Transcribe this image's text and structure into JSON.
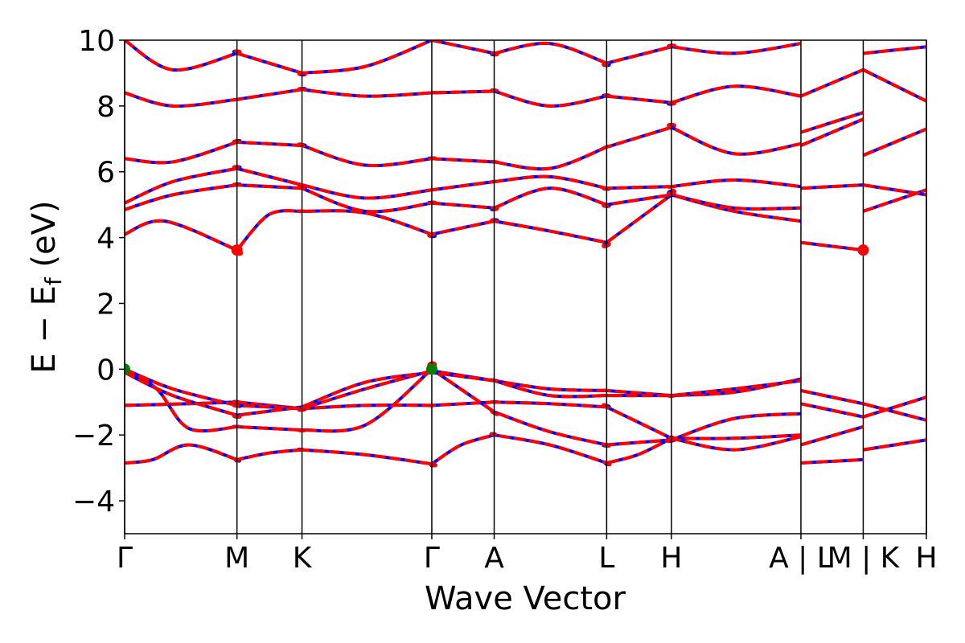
{
  "chart_data": {
    "type": "line",
    "xlabel": "Wave Vector",
    "ylabel": "E − E",
    "ylabel_sub": "f",
    "ylabel_unit": " (eV)",
    "ylim": [
      -5,
      10
    ],
    "yticks": [
      -4,
      -2,
      0,
      2,
      4,
      6,
      8,
      10
    ],
    "ytick_labels": [
      "−4",
      "−2",
      "0",
      "2",
      "4",
      "6",
      "8",
      "10"
    ],
    "xlim": [
      0,
      1
    ],
    "kpoints": [
      {
        "label": "Γ",
        "x": 0.0
      },
      {
        "label": "M",
        "x": 0.1401
      },
      {
        "label": "K",
        "x": 0.2212
      },
      {
        "label": "Γ",
        "x": 0.3831
      },
      {
        "label": "A",
        "x": 0.4609
      },
      {
        "label": "L",
        "x": 0.6012
      },
      {
        "label": "H",
        "x": 0.682
      },
      {
        "label": "A | L",
        "x": 0.8435
      },
      {
        "label": "M | K",
        "x": 0.9212
      },
      {
        "label": "H",
        "x": 1.0
      }
    ],
    "grid": false,
    "legend": "none",
    "colors": {
      "band_solid": "#0000ff",
      "band_dashed": "#ff0000",
      "cbm": "#ff0000",
      "vbm": "#008000"
    },
    "markers": [
      {
        "type": "cbm",
        "x": 0.1401,
        "y": 3.62
      },
      {
        "type": "cbm",
        "x": 0.9212,
        "y": 3.62
      },
      {
        "type": "vbm",
        "x": 0.0,
        "y": 0.0
      },
      {
        "type": "vbm",
        "x": 0.3831,
        "y": 0.0
      }
    ],
    "series": [
      {
        "x": [
          0,
          0.035,
          0.08,
          0.1401,
          0.1401,
          0.18,
          0.2212,
          0.2212,
          0.3,
          0.3831,
          0.3831,
          0.42,
          0.4609,
          0.4609,
          0.53,
          0.6012,
          0.6012,
          0.64,
          0.682,
          0.682,
          0.76,
          0.8435
        ],
        "y": [
          -2.85,
          -2.75,
          -2.3,
          -2.75,
          -2.75,
          -2.55,
          -2.45,
          -2.45,
          -2.6,
          -2.88,
          -2.88,
          -2.3,
          -2.0,
          -2.0,
          -2.3,
          -2.85,
          -2.85,
          -2.6,
          -2.1,
          -2.1,
          -2.1,
          -2.0
        ]
      },
      {
        "x": [
          0,
          0.08,
          0.1401,
          0.1401,
          0.2212,
          0.2212,
          0.3,
          0.3831,
          0.3831,
          0.4609,
          0.4609,
          0.53,
          0.6012,
          0.6012,
          0.682,
          0.682,
          0.76,
          0.8435
        ],
        "y": [
          -1.1,
          -1.05,
          -1.0,
          -1.0,
          -1.2,
          -1.2,
          -1.1,
          -1.1,
          -1.1,
          -1.0,
          -1.0,
          -1.05,
          -1.15,
          -1.15,
          -2.1,
          -2.1,
          -2.45,
          -2.05
        ]
      },
      {
        "x": [
          0,
          0.04,
          0.08,
          0.1401,
          0.1401,
          0.2212,
          0.2212,
          0.3,
          0.3831,
          0.3831,
          0.4609,
          0.4609,
          0.53,
          0.6012,
          0.6012,
          0.682,
          0.682,
          0.76,
          0.8435
        ],
        "y": [
          -0.05,
          -0.6,
          -1.8,
          -1.75,
          -1.75,
          -1.85,
          -1.85,
          -1.7,
          0.0,
          0.0,
          -1.3,
          -1.3,
          -1.9,
          -2.3,
          -2.3,
          -2.15,
          -2.15,
          -1.5,
          -1.35
        ]
      },
      {
        "x": [
          0,
          0.06,
          0.1401,
          0.1401,
          0.2212,
          0.2212,
          0.3,
          0.3831,
          0.3831,
          0.4609,
          0.4609,
          0.53,
          0.6012,
          0.6012,
          0.682,
          0.682,
          0.76,
          0.8435
        ],
        "y": [
          0.0,
          -0.6,
          -1.1,
          -1.1,
          -1.2,
          -1.2,
          -0.6,
          -0.05,
          -0.05,
          -0.35,
          -0.35,
          -0.6,
          -0.65,
          -0.65,
          -0.8,
          -0.8,
          -0.7,
          -0.3
        ]
      },
      {
        "x": [
          0,
          0.06,
          0.1401,
          0.1401,
          0.2212,
          0.2212,
          0.3,
          0.3831,
          0.3831,
          0.4609,
          0.4609,
          0.53,
          0.6012,
          0.6012,
          0.682,
          0.682,
          0.76,
          0.8435
        ],
        "y": [
          -0.1,
          -0.8,
          -1.4,
          -1.4,
          -1.15,
          -1.15,
          -0.4,
          -0.1,
          -0.1,
          -0.35,
          -0.35,
          -0.8,
          -0.8,
          -0.8,
          -0.8,
          -0.8,
          -0.6,
          -0.35
        ]
      },
      {
        "x": [
          0,
          0.05,
          0.1401,
          0.1401,
          0.18,
          0.2212,
          0.2212,
          0.3,
          0.3831,
          0.3831,
          0.4609,
          0.4609,
          0.53,
          0.6012,
          0.6012,
          0.682,
          0.682,
          0.76,
          0.8435
        ],
        "y": [
          4.1,
          4.5,
          3.62,
          3.62,
          4.7,
          4.8,
          4.8,
          4.75,
          4.1,
          4.1,
          4.5,
          4.5,
          4.2,
          3.85,
          3.85,
          5.3,
          5.3,
          4.8,
          4.5
        ]
      },
      {
        "x": [
          0,
          0.06,
          0.1401,
          0.1401,
          0.2212,
          0.2212,
          0.3,
          0.3831,
          0.3831,
          0.4609,
          0.4609,
          0.53,
          0.6012,
          0.6012,
          0.682,
          0.682,
          0.76,
          0.8435
        ],
        "y": [
          4.85,
          5.3,
          5.6,
          5.6,
          5.5,
          5.5,
          4.8,
          5.05,
          5.05,
          4.9,
          4.9,
          5.5,
          5.0,
          5.0,
          5.3,
          5.3,
          4.9,
          4.9
        ]
      },
      {
        "x": [
          0,
          0.06,
          0.1401,
          0.1401,
          0.2212,
          0.2212,
          0.3,
          0.3831,
          0.3831,
          0.4609,
          0.4609,
          0.53,
          0.6012,
          0.6012,
          0.682,
          0.682,
          0.76,
          0.8435
        ],
        "y": [
          5.05,
          5.7,
          6.1,
          6.1,
          5.6,
          5.6,
          5.2,
          5.45,
          5.45,
          5.7,
          5.7,
          5.85,
          5.5,
          5.5,
          5.55,
          5.55,
          5.75,
          5.55
        ]
      },
      {
        "x": [
          0,
          0.06,
          0.1401,
          0.1401,
          0.2212,
          0.2212,
          0.3,
          0.3831,
          0.3831,
          0.4609,
          0.4609,
          0.53,
          0.6012,
          0.6012,
          0.682,
          0.682,
          0.76,
          0.8435
        ],
        "y": [
          6.4,
          6.3,
          6.9,
          6.9,
          6.8,
          6.8,
          6.2,
          6.4,
          6.4,
          6.3,
          6.3,
          6.1,
          6.75,
          6.75,
          7.35,
          7.35,
          6.55,
          6.85
        ]
      },
      {
        "x": [
          0,
          0.06,
          0.1401,
          0.1401,
          0.2212,
          0.2212,
          0.3,
          0.3831,
          0.3831,
          0.4609,
          0.4609,
          0.53,
          0.6012,
          0.6012,
          0.682,
          0.682,
          0.76,
          0.8435
        ],
        "y": [
          8.4,
          8.0,
          8.2,
          8.2,
          8.5,
          8.5,
          8.3,
          8.4,
          8.4,
          8.45,
          8.45,
          8.0,
          8.3,
          8.3,
          8.1,
          8.1,
          8.6,
          8.3
        ]
      },
      {
        "x": [
          0,
          0.06,
          0.1401,
          0.1401,
          0.2212,
          0.2212,
          0.3,
          0.3831,
          0.3831,
          0.4609,
          0.4609,
          0.53,
          0.6012,
          0.6012,
          0.682,
          0.682,
          0.76,
          0.8435
        ],
        "y": [
          10.0,
          9.1,
          9.6,
          9.6,
          9.0,
          9.0,
          9.2,
          10.0,
          10.0,
          9.6,
          9.6,
          9.9,
          9.3,
          9.3,
          9.8,
          9.8,
          9.6,
          9.9
        ]
      },
      {
        "x": [
          0.8435,
          0.9212
        ],
        "y": [
          -2.85,
          -2.75
        ]
      },
      {
        "x": [
          0.8435,
          0.9212
        ],
        "y": [
          -2.3,
          -1.75
        ]
      },
      {
        "x": [
          0.8435,
          0.9212
        ],
        "y": [
          -1.05,
          -1.45
        ]
      },
      {
        "x": [
          0.8435,
          0.9212
        ],
        "y": [
          -0.65,
          -1.05
        ]
      },
      {
        "x": [
          0.8435,
          0.9212
        ],
        "y": [
          3.85,
          3.62
        ]
      },
      {
        "x": [
          0.8435,
          0.9212
        ],
        "y": [
          5.5,
          5.6
        ]
      },
      {
        "x": [
          0.8435,
          0.9212
        ],
        "y": [
          6.8,
          7.6
        ]
      },
      {
        "x": [
          0.8435,
          0.9212
        ],
        "y": [
          7.2,
          7.8
        ]
      },
      {
        "x": [
          0.8435,
          0.9212
        ],
        "y": [
          8.3,
          9.1
        ]
      },
      {
        "x": [
          0.9212,
          1.0
        ],
        "y": [
          -2.45,
          -2.15
        ]
      },
      {
        "x": [
          0.9212,
          1.0
        ],
        "y": [
          -1.45,
          -0.85
        ]
      },
      {
        "x": [
          0.9212,
          1.0
        ],
        "y": [
          -1.05,
          -1.55
        ]
      },
      {
        "x": [
          0.9212,
          1.0
        ],
        "y": [
          4.8,
          5.45
        ]
      },
      {
        "x": [
          0.9212,
          1.0
        ],
        "y": [
          5.6,
          5.3
        ]
      },
      {
        "x": [
          0.9212,
          1.0
        ],
        "y": [
          6.5,
          7.3
        ]
      },
      {
        "x": [
          0.9212,
          1.0
        ],
        "y": [
          9.1,
          8.15
        ]
      },
      {
        "x": [
          0.9212,
          1.0
        ],
        "y": [
          9.6,
          9.8
        ]
      }
    ]
  }
}
